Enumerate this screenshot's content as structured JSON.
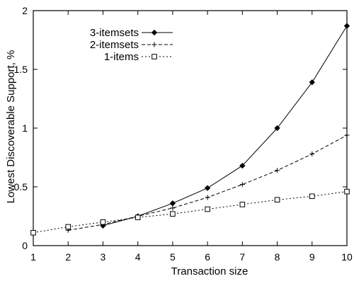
{
  "chart_data": {
    "type": "line",
    "title": "",
    "xlabel": "Transaction size",
    "ylabel": "Lowest Discoverable Support, %",
    "xlim": [
      1,
      10
    ],
    "ylim": [
      0,
      2
    ],
    "xticks": [
      1,
      2,
      3,
      4,
      5,
      6,
      7,
      8,
      9,
      10
    ],
    "yticks": [
      0,
      0.5,
      1,
      1.5,
      2
    ],
    "ytick_labels": [
      "0",
      "0.5",
      "1",
      "1.5",
      "2"
    ],
    "grid": false,
    "legend_position": "top-left",
    "series": [
      {
        "name": "3-itemsets",
        "line_style": "solid",
        "marker": "diamond",
        "x": [
          3,
          4,
          5,
          6,
          7,
          8,
          9,
          10
        ],
        "y": [
          0.17,
          0.25,
          0.36,
          0.49,
          0.68,
          1.0,
          1.39,
          1.87
        ]
      },
      {
        "name": "2-itemsets",
        "line_style": "dashed",
        "marker": "plus",
        "x": [
          2,
          3,
          4,
          5,
          6,
          7,
          8,
          9,
          10
        ],
        "y": [
          0.13,
          0.18,
          0.25,
          0.32,
          0.41,
          0.52,
          0.64,
          0.78,
          0.94
        ]
      },
      {
        "name": "1-items",
        "line_style": "dotted",
        "marker": "square",
        "x": [
          1,
          2,
          3,
          4,
          5,
          6,
          7,
          8,
          9,
          10
        ],
        "y": [
          0.11,
          0.16,
          0.2,
          0.24,
          0.27,
          0.31,
          0.35,
          0.39,
          0.42,
          0.46
        ]
      }
    ]
  }
}
